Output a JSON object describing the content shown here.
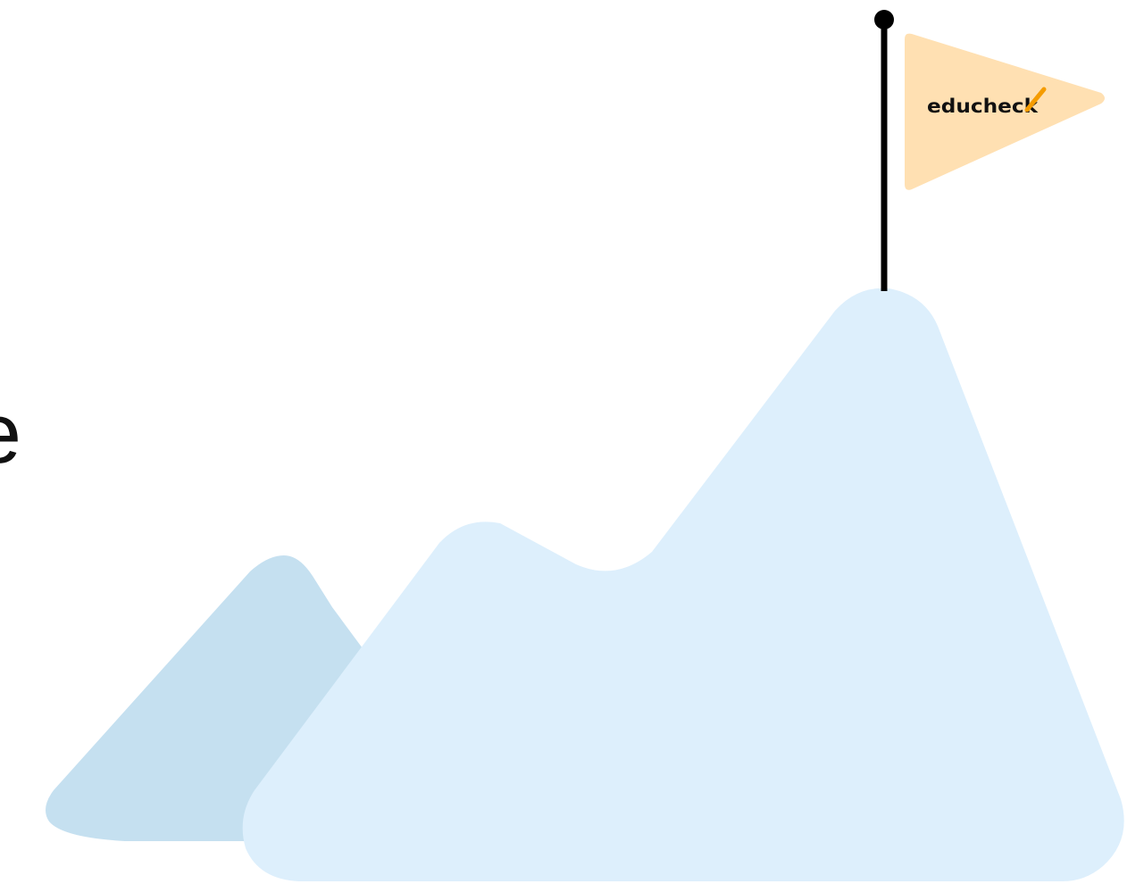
{
  "fragment": "e",
  "logo": "educheck"
}
